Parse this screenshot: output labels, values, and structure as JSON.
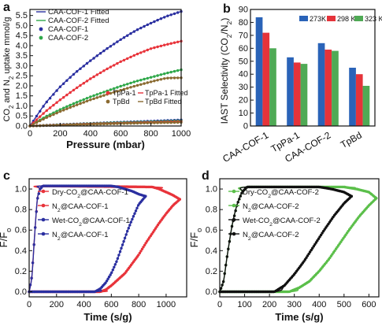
{
  "chart_data": [
    {
      "panel": "a",
      "type": "line",
      "xlabel": "Pressure (mbar)",
      "ylabel": "CO2 and N2 uptake mmol/g",
      "ylabel_parts": {
        "pre": "CO",
        "sub1": "2",
        "mid": " and  N",
        "sub2": "2",
        "post": " uptake mmol/g"
      },
      "xlim": [
        0,
        1000
      ],
      "ylim": [
        0,
        5.8
      ],
      "xticks": [
        0,
        200,
        400,
        600,
        800,
        1000
      ],
      "yticks": [
        0.0,
        0.5,
        1.0,
        1.5,
        2.0,
        2.5,
        3.0,
        3.5,
        4.0,
        4.5,
        5.0,
        5.5
      ],
      "legend_top": [
        "CAA-COF-1 Fitted",
        "CAA-COF-2 Fitted",
        "CAA-COF-1",
        "CAA-COF-2"
      ],
      "legend_bottom": [
        "TpPa-1",
        "TpPa-1 Fitted",
        "TpBd",
        "TpBd Fitted"
      ],
      "series": [
        {
          "name": "CAA-COF-1",
          "color": "#2a2fa0",
          "x": [
            0,
            100,
            200,
            300,
            400,
            500,
            600,
            700,
            800,
            900,
            1000
          ],
          "y": [
            0,
            1.1,
            1.95,
            2.65,
            3.25,
            3.8,
            4.3,
            4.75,
            5.12,
            5.45,
            5.7
          ]
        },
        {
          "name": "CAA-COF-2",
          "color": "#2fa84a",
          "x": [
            0,
            100,
            200,
            300,
            400,
            500,
            600,
            700,
            800,
            900,
            1000
          ],
          "y": [
            0,
            0.45,
            0.82,
            1.15,
            1.45,
            1.72,
            1.98,
            2.22,
            2.42,
            2.62,
            2.8
          ]
        },
        {
          "name": "TpPa-1",
          "color": "#e8333a",
          "x": [
            0,
            100,
            200,
            300,
            400,
            500,
            600,
            700,
            800,
            900,
            1000
          ],
          "y": [
            0,
            0.7,
            1.3,
            1.85,
            2.35,
            2.8,
            3.2,
            3.55,
            3.85,
            4.05,
            4.22
          ]
        },
        {
          "name": "TpBd",
          "color": "#8a6a30",
          "x": [
            0,
            100,
            200,
            300,
            400,
            500,
            600,
            700,
            800,
            900,
            1000
          ],
          "y": [
            0,
            0.38,
            0.72,
            1.02,
            1.3,
            1.55,
            1.78,
            2.0,
            2.2,
            2.38,
            2.4
          ]
        },
        {
          "name": "CAA-COF-1 (N2)",
          "color": "#2a2fa0",
          "x": [
            0,
            200,
            400,
            600,
            800,
            1000
          ],
          "y": [
            0,
            0.07,
            0.13,
            0.19,
            0.24,
            0.3
          ]
        },
        {
          "name": "CAA-COF-2 (N2)",
          "color": "#2fa84a",
          "x": [
            0,
            200,
            400,
            600,
            800,
            1000
          ],
          "y": [
            0,
            0.06,
            0.12,
            0.17,
            0.21,
            0.26
          ]
        },
        {
          "name": "TpPa-1 (N2)",
          "color": "#e8333a",
          "x": [
            0,
            200,
            400,
            600,
            800,
            1000
          ],
          "y": [
            0,
            0.05,
            0.1,
            0.14,
            0.18,
            0.22
          ]
        },
        {
          "name": "TpBd (N2)",
          "color": "#8a6a30",
          "x": [
            0,
            200,
            400,
            600,
            800,
            1000
          ],
          "y": [
            0,
            0.04,
            0.08,
            0.12,
            0.15,
            0.18
          ]
        }
      ]
    },
    {
      "panel": "b",
      "type": "bar",
      "ylabel": "IAST Selectivity (CO2/N2)",
      "ylabel_parts": {
        "pre": "IAST Selectivity (CO",
        "sub1": "2",
        "mid": "/N",
        "sub2": "2",
        "post": ")"
      },
      "ylim": [
        0,
        90
      ],
      "yticks": [
        0,
        10,
        20,
        30,
        40,
        50,
        60,
        70,
        80,
        90
      ],
      "categories": [
        "CAA-COF-1",
        "TpPa-1",
        "CAA-COF-2",
        "TpBd"
      ],
      "series": [
        {
          "name": "273K",
          "color": "#2a63b8",
          "values": [
            84,
            53,
            64,
            45
          ]
        },
        {
          "name": "298 K",
          "color": "#e5333a",
          "values": [
            72,
            49,
            59,
            40
          ]
        },
        {
          "name": "323 K",
          "color": "#4faa55",
          "values": [
            60,
            48,
            58,
            31
          ]
        }
      ]
    },
    {
      "panel": "c",
      "type": "line",
      "xlabel": "Time (s/g)",
      "ylabel": "F/Fo",
      "xlim": [
        0,
        1150
      ],
      "ylim": [
        -0.05,
        1.1
      ],
      "xticks": [
        0,
        200,
        400,
        600,
        800,
        1000
      ],
      "yticks": [
        0.0,
        0.2,
        0.4,
        0.6,
        0.8,
        1.0
      ],
      "series": [
        {
          "name": "Dry-CO2@CAA-COF-1",
          "color": "#e8333a",
          "x": [
            0,
            20,
            40,
            60,
            80,
            100,
            900,
            950,
            1000,
            1050,
            1100
          ],
          "y": [
            0,
            0.15,
            0.55,
            0.9,
            1.0,
            1.03,
            1.02,
            1.0,
            0.97,
            0.94,
            0.9
          ]
        },
        {
          "name": "N2@CAA-COF-1",
          "color": "#e8333a",
          "x": [
            0,
            520,
            560,
            600,
            650,
            700,
            750,
            800,
            850,
            900,
            950,
            1000,
            1050,
            1100
          ],
          "y": [
            0,
            0,
            0.02,
            0.06,
            0.12,
            0.18,
            0.27,
            0.36,
            0.47,
            0.57,
            0.67,
            0.76,
            0.84,
            0.9
          ]
        },
        {
          "name": "Wet-CO2@CAA-COF-1",
          "color": "#2a2fa0",
          "x": [
            0,
            20,
            40,
            60,
            80,
            100,
            600,
            650,
            700,
            750,
            800,
            850
          ],
          "y": [
            0,
            0.15,
            0.55,
            0.9,
            1.0,
            1.03,
            1.03,
            1.02,
            1.0,
            0.98,
            0.95,
            0.93
          ]
        },
        {
          "name": "N2@CAA-COF-1",
          "color": "#2a2fa0",
          "x": [
            0,
            480,
            520,
            560,
            600,
            640,
            680,
            720,
            760,
            800,
            850
          ],
          "y": [
            0,
            0,
            0.03,
            0.09,
            0.18,
            0.3,
            0.45,
            0.6,
            0.73,
            0.85,
            0.93
          ]
        }
      ]
    },
    {
      "panel": "d",
      "type": "line",
      "xlabel": "Time (s/g)",
      "ylabel": "F/Fo",
      "xlim": [
        0,
        640
      ],
      "ylim": [
        -0.05,
        1.1
      ],
      "xticks": [
        0,
        100,
        200,
        300,
        400,
        500,
        600
      ],
      "yticks": [
        0.0,
        0.2,
        0.4,
        0.6,
        0.8,
        1.0
      ],
      "series": [
        {
          "name": "Dry-CO2@CAA-COF-2",
          "color": "#5bbf4a",
          "x": [
            0,
            15,
            30,
            50,
            70,
            90,
            110,
            500,
            550,
            600,
            630
          ],
          "y": [
            0,
            0.1,
            0.35,
            0.65,
            0.85,
            0.97,
            1.02,
            1.02,
            1.0,
            0.97,
            0.91
          ]
        },
        {
          "name": "N2@CAA-COF-2",
          "color": "#5bbf4a",
          "x": [
            0,
            280,
            320,
            360,
            400,
            440,
            480,
            520,
            560,
            600,
            630
          ],
          "y": [
            0,
            0,
            0.04,
            0.1,
            0.2,
            0.32,
            0.46,
            0.6,
            0.73,
            0.84,
            0.91
          ]
        },
        {
          "name": "Wet-CO2@CAA-COF-2",
          "color": "#111111",
          "x": [
            0,
            15,
            30,
            50,
            70,
            90,
            110,
            400,
            450,
            500,
            530
          ],
          "y": [
            0,
            0.1,
            0.35,
            0.65,
            0.85,
            0.97,
            1.02,
            1.02,
            1.0,
            0.97,
            0.93
          ]
        },
        {
          "name": "N2@CAA-COF-2",
          "color": "#111111",
          "x": [
            0,
            220,
            260,
            300,
            340,
            380,
            420,
            460,
            500,
            530
          ],
          "y": [
            0,
            0,
            0.06,
            0.17,
            0.3,
            0.45,
            0.6,
            0.74,
            0.86,
            0.93
          ]
        }
      ]
    }
  ],
  "legend_c": [
    {
      "pre": "Dry-CO",
      "sub": "2",
      "post": "@CAA-COF-1",
      "color": "#e8333a",
      "marker": "circle"
    },
    {
      "pre": "N",
      "sub": "2",
      "post": "@CAA-COF-1",
      "color": "#e8333a",
      "marker": "circle"
    },
    {
      "pre": "Wet-CO",
      "sub": "2",
      "post": "@CAA-COF-1",
      "color": "#2a2fa0",
      "marker": "circle"
    },
    {
      "pre": "N",
      "sub": "2",
      "post": "@CAA-COF-1",
      "color": "#2a2fa0",
      "marker": "circle"
    }
  ],
  "legend_d": [
    {
      "pre": "Dry-CO",
      "sub": "2",
      "post": "@CAA-COF-2",
      "color": "#5bbf4a",
      "marker": "circle"
    },
    {
      "pre": "N",
      "sub": "2",
      "post": "@CAA-COF-2",
      "color": "#5bbf4a",
      "marker": "circle"
    },
    {
      "pre": "Wet-CO",
      "sub": "2",
      "post": "@CAA-COF-2",
      "color": "#111111",
      "marker": "circle"
    },
    {
      "pre": "N",
      "sub": "2",
      "post": "@CAA-COF-2",
      "color": "#111111",
      "marker": "circle"
    }
  ],
  "panel_labels": [
    "a",
    "b",
    "c",
    "d"
  ]
}
